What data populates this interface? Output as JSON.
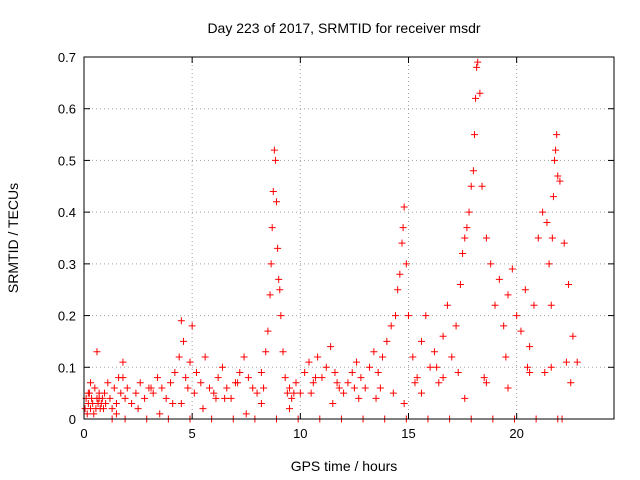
{
  "chart_data": {
    "type": "scatter",
    "title": "Day 223 of 2017, SRMTID for receiver msdr",
    "xlabel": "GPS time / hours",
    "ylabel": "SRMTID / TECUs",
    "xlim": [
      0,
      24.5
    ],
    "ylim": [
      0,
      0.7
    ],
    "xticks": [
      0,
      5,
      10,
      15,
      20
    ],
    "xtick_labels": [
      "0",
      "5",
      "10",
      "15",
      "20"
    ],
    "yticks": [
      0,
      0.1,
      0.2,
      0.3,
      0.4,
      0.5,
      0.6,
      0.7
    ],
    "ytick_labels": [
      "0",
      "0.1",
      "0.2",
      "0.3",
      "0.4",
      "0.5",
      "0.6",
      "0.7"
    ],
    "grid": true,
    "marker": "+",
    "color": "#ff0000",
    "series": [
      {
        "name": "SRMTID",
        "x": [
          0.05,
          0.1,
          0.15,
          0.2,
          0.25,
          0.3,
          0.35,
          0.4,
          0.45,
          0.5,
          0.55,
          0.6,
          0.65,
          0.7,
          0.75,
          0.8,
          0.85,
          0.9,
          0.95,
          1.0,
          1.1,
          1.2,
          1.3,
          1.4,
          1.5,
          1.6,
          1.7,
          1.8,
          1.9,
          2.0,
          2.2,
          2.4,
          2.6,
          2.8,
          3.0,
          3.2,
          3.4,
          3.6,
          3.8,
          4.0,
          4.2,
          4.4,
          4.5,
          4.6,
          4.7,
          4.8,
          4.9,
          5.0,
          5.2,
          5.4,
          5.6,
          5.8,
          6.0,
          6.2,
          6.4,
          6.6,
          6.8,
          7.0,
          7.2,
          7.4,
          7.6,
          7.8,
          8.0,
          8.2,
          8.4,
          8.5,
          8.6,
          8.65,
          8.7,
          8.75,
          8.8,
          8.85,
          8.9,
          8.95,
          9.0,
          9.05,
          9.1,
          9.2,
          9.3,
          9.4,
          9.5,
          9.6,
          9.8,
          10.0,
          10.2,
          10.4,
          10.6,
          10.8,
          11.0,
          11.2,
          11.4,
          11.6,
          11.8,
          12.0,
          12.2,
          12.4,
          12.6,
          12.8,
          13.0,
          13.2,
          13.4,
          13.6,
          13.8,
          14.0,
          14.2,
          14.4,
          14.5,
          14.6,
          14.7,
          14.75,
          14.8,
          14.9,
          15.0,
          15.2,
          15.4,
          15.6,
          15.8,
          16.0,
          16.2,
          16.4,
          16.6,
          16.8,
          17.0,
          17.2,
          17.4,
          17.5,
          17.6,
          17.7,
          17.8,
          17.9,
          18.0,
          18.05,
          18.1,
          18.15,
          18.2,
          18.3,
          18.4,
          18.6,
          18.8,
          19.0,
          19.2,
          19.4,
          19.6,
          19.8,
          20.0,
          20.2,
          20.4,
          20.6,
          20.8,
          21.0,
          21.2,
          21.4,
          21.5,
          21.6,
          21.65,
          21.7,
          21.75,
          21.8,
          21.85,
          21.9,
          22.0,
          22.2,
          22.4,
          22.6,
          22.8,
          0.3,
          0.7,
          1.5,
          2.5,
          3.5,
          4.5,
          5.5,
          6.5,
          7.5,
          8.2,
          9.5,
          10.5,
          11.5,
          12.5,
          13.5,
          14.3,
          15.3,
          16.3,
          17.3,
          18.5,
          19.5,
          20.5,
          21.3,
          22.3,
          0.6,
          1.8,
          3.1,
          4.1,
          5.1,
          6.1,
          7.1,
          8.3,
          9.7,
          10.7,
          11.7,
          12.7,
          13.7,
          14.8,
          15.6,
          16.6,
          17.6,
          18.6,
          19.6,
          20.6,
          21.6,
          22.5,
          0.2,
          1.3,
          2.9,
          4.9,
          6.9,
          8.9,
          10.9,
          12.9,
          14.9,
          16.9,
          18.9,
          20.9,
          22.1,
          1.9,
          3.9,
          5.9,
          7.9,
          9.9,
          11.9,
          13.9,
          15.9,
          17.9,
          19.9,
          21.9
        ],
        "y": [
          0.02,
          0.04,
          0.01,
          0.03,
          0.05,
          0.02,
          0.04,
          0.03,
          0.01,
          0.06,
          0.02,
          0.04,
          0.03,
          0.05,
          0.02,
          0.03,
          0.04,
          0.02,
          0.05,
          0.03,
          0.07,
          0.04,
          0.02,
          0.06,
          0.03,
          0.08,
          0.05,
          0.11,
          0.04,
          0.06,
          0.03,
          0.05,
          0.07,
          0.04,
          0.06,
          0.05,
          0.08,
          0.06,
          0.04,
          0.07,
          0.09,
          0.12,
          0.19,
          0.15,
          0.08,
          0.06,
          0.11,
          0.18,
          0.09,
          0.07,
          0.12,
          0.06,
          0.05,
          0.08,
          0.1,
          0.06,
          0.04,
          0.07,
          0.09,
          0.12,
          0.08,
          0.06,
          0.05,
          0.09,
          0.13,
          0.17,
          0.24,
          0.3,
          0.37,
          0.44,
          0.52,
          0.5,
          0.42,
          0.33,
          0.27,
          0.25,
          0.2,
          0.13,
          0.08,
          0.05,
          0.06,
          0.04,
          0.07,
          0.05,
          0.09,
          0.11,
          0.07,
          0.12,
          0.08,
          0.1,
          0.14,
          0.09,
          0.06,
          0.05,
          0.07,
          0.09,
          0.11,
          0.08,
          0.06,
          0.1,
          0.13,
          0.09,
          0.12,
          0.15,
          0.18,
          0.2,
          0.25,
          0.28,
          0.34,
          0.37,
          0.41,
          0.3,
          0.2,
          0.12,
          0.08,
          0.15,
          0.2,
          0.1,
          0.13,
          0.07,
          0.16,
          0.22,
          0.12,
          0.18,
          0.26,
          0.32,
          0.35,
          0.37,
          0.4,
          0.45,
          0.48,
          0.55,
          0.62,
          0.68,
          0.69,
          0.63,
          0.45,
          0.35,
          0.3,
          0.22,
          0.27,
          0.18,
          0.24,
          0.29,
          0.2,
          0.17,
          0.25,
          0.14,
          0.22,
          0.35,
          0.4,
          0.38,
          0.3,
          0.22,
          0.35,
          0.43,
          0.5,
          0.52,
          0.55,
          0.47,
          0.46,
          0.34,
          0.26,
          0.16,
          0.11,
          0.07,
          0.04,
          0.01,
          0.02,
          0.01,
          0.03,
          0.02,
          0.04,
          0.01,
          0.03,
          0.02,
          0.05,
          0.03,
          0.06,
          0.04,
          0.05,
          0.07,
          0.1,
          0.09,
          0.08,
          0.12,
          0.1,
          0.09,
          0.11,
          0.13,
          0.08,
          0.06,
          0.03,
          0.05,
          0.04,
          0.07,
          0.06,
          0.05,
          0.08,
          0.07,
          0.04,
          0.06,
          0.03,
          0.05,
          0.08,
          0.04,
          0.07,
          0.06,
          0.09,
          0.1,
          0.07,
          0.05,
          0,
          0,
          0,
          0,
          0,
          0,
          0,
          0,
          0,
          0,
          0,
          0,
          0,
          0,
          0,
          0,
          0,
          0,
          0,
          0,
          0,
          0,
          0
        ]
      }
    ]
  }
}
